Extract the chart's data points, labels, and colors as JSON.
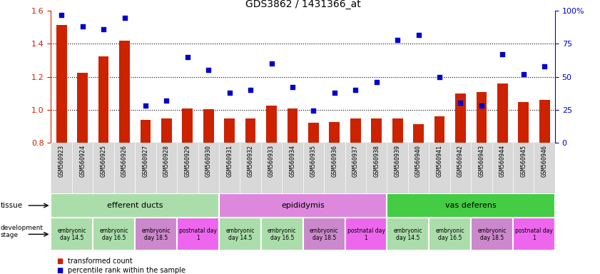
{
  "title": "GDS3862 / 1431366_at",
  "sample_ids": [
    "GSM560923",
    "GSM560924",
    "GSM560925",
    "GSM560926",
    "GSM560927",
    "GSM560928",
    "GSM560929",
    "GSM560930",
    "GSM560931",
    "GSM560932",
    "GSM560933",
    "GSM560934",
    "GSM560935",
    "GSM560936",
    "GSM560937",
    "GSM560938",
    "GSM560939",
    "GSM560940",
    "GSM560941",
    "GSM560942",
    "GSM560943",
    "GSM560944",
    "GSM560945",
    "GSM560946"
  ],
  "bar_values": [
    1.513,
    1.224,
    1.325,
    1.421,
    0.937,
    0.945,
    1.005,
    1.003,
    0.948,
    0.948,
    1.025,
    1.005,
    0.921,
    0.923,
    0.945,
    0.948,
    0.948,
    0.91,
    0.96,
    1.1,
    1.105,
    1.16,
    1.045,
    1.06
  ],
  "scatter_values": [
    97,
    88,
    86,
    95,
    28,
    32,
    65,
    55,
    38,
    40,
    60,
    42,
    24,
    38,
    40,
    46,
    78,
    82,
    50,
    30,
    28,
    67,
    52,
    58
  ],
  "bar_color": "#cc2200",
  "scatter_color": "#0000cc",
  "ylim_left": [
    0.8,
    1.6
  ],
  "ylim_right": [
    0,
    100
  ],
  "yticks_left": [
    0.8,
    1.0,
    1.2,
    1.4,
    1.6
  ],
  "yticks_right": [
    0,
    25,
    50,
    75,
    100
  ],
  "ytick_labels_right": [
    "0",
    "25",
    "50",
    "75",
    "100%"
  ],
  "dotted_lines": [
    1.0,
    1.2,
    1.4
  ],
  "tissue_groups": [
    {
      "label": "efferent ducts",
      "start": 0,
      "end": 7,
      "color": "#aaddaa"
    },
    {
      "label": "epididymis",
      "start": 8,
      "end": 15,
      "color": "#dd88dd"
    },
    {
      "label": "vas deferens",
      "start": 16,
      "end": 23,
      "color": "#44cc44"
    }
  ],
  "dev_stage_groups": [
    {
      "label": "embryonic\nday 14.5",
      "start": 0,
      "end": 1,
      "color": "#aaddaa"
    },
    {
      "label": "embryonic\nday 16.5",
      "start": 2,
      "end": 3,
      "color": "#aaddaa"
    },
    {
      "label": "embryonic\nday 18.5",
      "start": 4,
      "end": 5,
      "color": "#cc88cc"
    },
    {
      "label": "postnatal day\n1",
      "start": 6,
      "end": 7,
      "color": "#ee66ee"
    },
    {
      "label": "embryonic\nday 14.5",
      "start": 8,
      "end": 9,
      "color": "#aaddaa"
    },
    {
      "label": "embryonic\nday 16.5",
      "start": 10,
      "end": 11,
      "color": "#aaddaa"
    },
    {
      "label": "embryonic\nday 18.5",
      "start": 12,
      "end": 13,
      "color": "#cc88cc"
    },
    {
      "label": "postnatal day\n1",
      "start": 14,
      "end": 15,
      "color": "#ee66ee"
    },
    {
      "label": "embryonic\nday 14.5",
      "start": 16,
      "end": 17,
      "color": "#aaddaa"
    },
    {
      "label": "embryonic\nday 16.5",
      "start": 18,
      "end": 19,
      "color": "#aaddaa"
    },
    {
      "label": "embryonic\nday 18.5",
      "start": 20,
      "end": 21,
      "color": "#cc88cc"
    },
    {
      "label": "postnatal day\n1",
      "start": 22,
      "end": 23,
      "color": "#ee66ee"
    }
  ],
  "legend_items": [
    {
      "label": "transformed count",
      "color": "#cc2200"
    },
    {
      "label": "percentile rank within the sample",
      "color": "#0000cc"
    }
  ],
  "background_color": "#ffffff",
  "bar_width": 0.5,
  "xticklabel_bg": "#d8d8d8"
}
